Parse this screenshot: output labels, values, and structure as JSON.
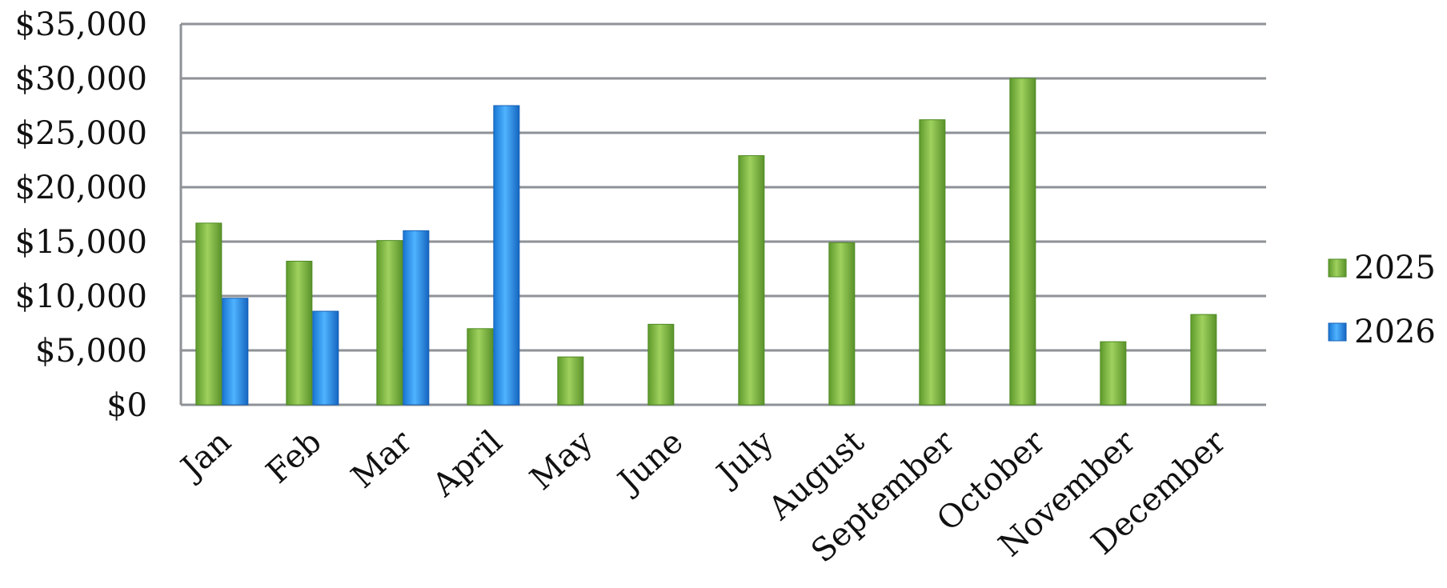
{
  "chart_data": {
    "type": "bar",
    "title": "",
    "xlabel": "",
    "ylabel": "",
    "categories": [
      "Jan",
      "Feb",
      "Mar",
      "April",
      "May",
      "June",
      "July",
      "August",
      "September",
      "October",
      "November",
      "December"
    ],
    "series": [
      {
        "name": "2025",
        "color": "#7cb342",
        "values": [
          16700,
          13200,
          15100,
          7000,
          4400,
          7400,
          22900,
          14900,
          26200,
          30000,
          5800,
          8300
        ]
      },
      {
        "name": "2026",
        "color": "#2196f3",
        "values": [
          9800,
          8600,
          16000,
          27500,
          null,
          null,
          null,
          null,
          null,
          null,
          null,
          null
        ]
      }
    ],
    "ylim": [
      0,
      35000
    ],
    "yticks": [
      0,
      5000,
      10000,
      15000,
      20000,
      25000,
      30000,
      35000
    ],
    "ytick_labels": [
      "$0",
      "$5,000",
      "$10,000",
      "$15,000",
      "$20,000",
      "$25,000",
      "$30,000",
      "$35,000"
    ],
    "grid": true,
    "legend_position": "right"
  }
}
